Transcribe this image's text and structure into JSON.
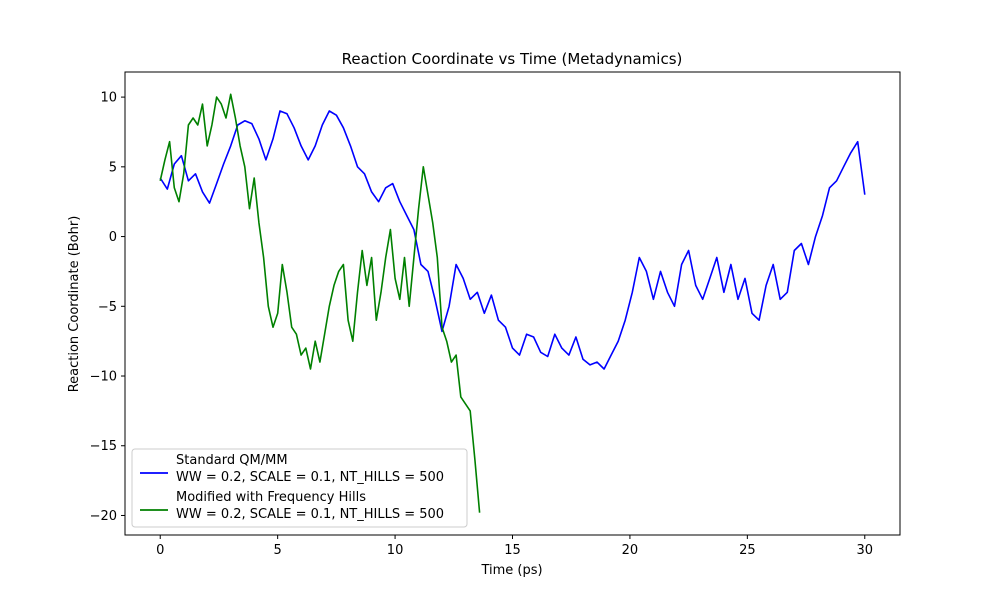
{
  "chart_data": {
    "type": "line",
    "title": "Reaction Coordinate vs Time (Metadynamics)",
    "xlabel": "Time (ps)",
    "ylabel": "Reaction Coordinate (Bohr)",
    "xlim": [
      -1.5,
      31.5
    ],
    "ylim": [
      -21.4,
      11.8
    ],
    "xticks": [
      0,
      5,
      10,
      15,
      20,
      25,
      30
    ],
    "yticks": [
      -20,
      -15,
      -10,
      -5,
      0,
      5,
      10
    ],
    "grid": false,
    "legend_position": "lower-left",
    "series": [
      {
        "name_lines": [
          "Standard QM/MM",
          "WW = 0.2, SCALE = 0.1, NT_HILLS = 500"
        ],
        "color": "#0000ff",
        "x": [
          0.0,
          0.3,
          0.6,
          0.9,
          1.2,
          1.5,
          1.8,
          2.1,
          2.4,
          2.7,
          3.0,
          3.3,
          3.6,
          3.9,
          4.2,
          4.5,
          4.8,
          5.1,
          5.4,
          5.7,
          6.0,
          6.3,
          6.6,
          6.9,
          7.2,
          7.5,
          7.8,
          8.1,
          8.4,
          8.7,
          9.0,
          9.3,
          9.6,
          9.9,
          10.2,
          10.5,
          10.8,
          11.1,
          11.4,
          11.7,
          12.0,
          12.3,
          12.6,
          12.9,
          13.2,
          13.5,
          13.8,
          14.1,
          14.4,
          14.7,
          15.0,
          15.3,
          15.6,
          15.9,
          16.2,
          16.5,
          16.8,
          17.1,
          17.4,
          17.7,
          18.0,
          18.3,
          18.6,
          18.9,
          19.2,
          19.5,
          19.8,
          20.1,
          20.4,
          20.7,
          21.0,
          21.3,
          21.6,
          21.9,
          22.2,
          22.5,
          22.8,
          23.1,
          23.4,
          23.7,
          24.0,
          24.3,
          24.6,
          24.9,
          25.2,
          25.5,
          25.8,
          26.1,
          26.4,
          26.7,
          27.0,
          27.3,
          27.6,
          27.9,
          28.2,
          28.5,
          28.8,
          29.1,
          29.4,
          29.7,
          30.0
        ],
        "y": [
          4.2,
          3.4,
          5.2,
          5.8,
          4.0,
          4.5,
          3.2,
          2.4,
          3.8,
          5.2,
          6.5,
          8.0,
          8.3,
          8.1,
          7.0,
          5.5,
          7.0,
          9.0,
          8.8,
          7.8,
          6.5,
          5.5,
          6.5,
          8.0,
          9.0,
          8.7,
          7.8,
          6.5,
          5.0,
          4.5,
          3.2,
          2.5,
          3.5,
          3.8,
          2.5,
          1.5,
          0.5,
          -2.0,
          -2.5,
          -4.5,
          -6.8,
          -5.0,
          -2.0,
          -3.0,
          -4.5,
          -4.0,
          -5.5,
          -4.2,
          -6.0,
          -6.5,
          -8.0,
          -8.5,
          -7.0,
          -7.2,
          -8.3,
          -8.6,
          -7.0,
          -8.0,
          -8.5,
          -7.2,
          -8.8,
          -9.2,
          -9.0,
          -9.5,
          -8.5,
          -7.5,
          -6.0,
          -4.0,
          -1.5,
          -2.5,
          -4.5,
          -2.5,
          -4.0,
          -5.0,
          -2.0,
          -1.0,
          -3.5,
          -4.5,
          -3.0,
          -1.5,
          -4.0,
          -2.0,
          -4.5,
          -3.0,
          -5.5,
          -6.0,
          -3.5,
          -2.0,
          -4.5,
          -4.0,
          -1.0,
          -0.5,
          -2.0,
          0.0,
          1.5,
          3.5,
          4.0,
          5.0,
          6.0,
          6.8,
          3.0
        ]
      },
      {
        "name_lines": [
          "Modified with Frequency Hills",
          "WW = 0.2, SCALE = 0.1, NT_HILLS = 500"
        ],
        "color": "#008000",
        "x": [
          0.0,
          0.2,
          0.4,
          0.6,
          0.8,
          1.0,
          1.2,
          1.4,
          1.6,
          1.8,
          2.0,
          2.2,
          2.4,
          2.6,
          2.8,
          3.0,
          3.2,
          3.4,
          3.6,
          3.8,
          4.0,
          4.2,
          4.4,
          4.6,
          4.8,
          5.0,
          5.2,
          5.4,
          5.6,
          5.8,
          6.0,
          6.2,
          6.4,
          6.6,
          6.8,
          7.0,
          7.2,
          7.4,
          7.6,
          7.8,
          8.0,
          8.2,
          8.4,
          8.6,
          8.8,
          9.0,
          9.2,
          9.4,
          9.6,
          9.8,
          10.0,
          10.2,
          10.4,
          10.6,
          10.8,
          11.0,
          11.2,
          11.4,
          11.6,
          11.8,
          12.0,
          12.2,
          12.4,
          12.6,
          12.8,
          13.0,
          13.2,
          13.4,
          13.6
        ],
        "y": [
          4.0,
          5.5,
          6.8,
          3.5,
          2.5,
          4.5,
          8.0,
          8.5,
          8.0,
          9.5,
          6.5,
          8.0,
          10.0,
          9.5,
          8.5,
          10.2,
          8.5,
          6.5,
          5.0,
          2.0,
          4.2,
          1.0,
          -1.5,
          -5.0,
          -6.5,
          -5.5,
          -2.0,
          -4.0,
          -6.5,
          -7.0,
          -8.5,
          -8.0,
          -9.5,
          -7.5,
          -9.0,
          -7.0,
          -5.0,
          -3.5,
          -2.5,
          -2.0,
          -6.0,
          -7.5,
          -4.0,
          -1.0,
          -3.5,
          -1.5,
          -6.0,
          -4.0,
          -1.5,
          0.5,
          -3.0,
          -4.5,
          -1.5,
          -5.0,
          -1.5,
          2.0,
          5.0,
          3.0,
          1.0,
          -1.5,
          -6.5,
          -7.5,
          -9.0,
          -8.5,
          -11.5,
          -12.0,
          -12.5,
          -16.0,
          -19.8
        ]
      }
    ]
  }
}
